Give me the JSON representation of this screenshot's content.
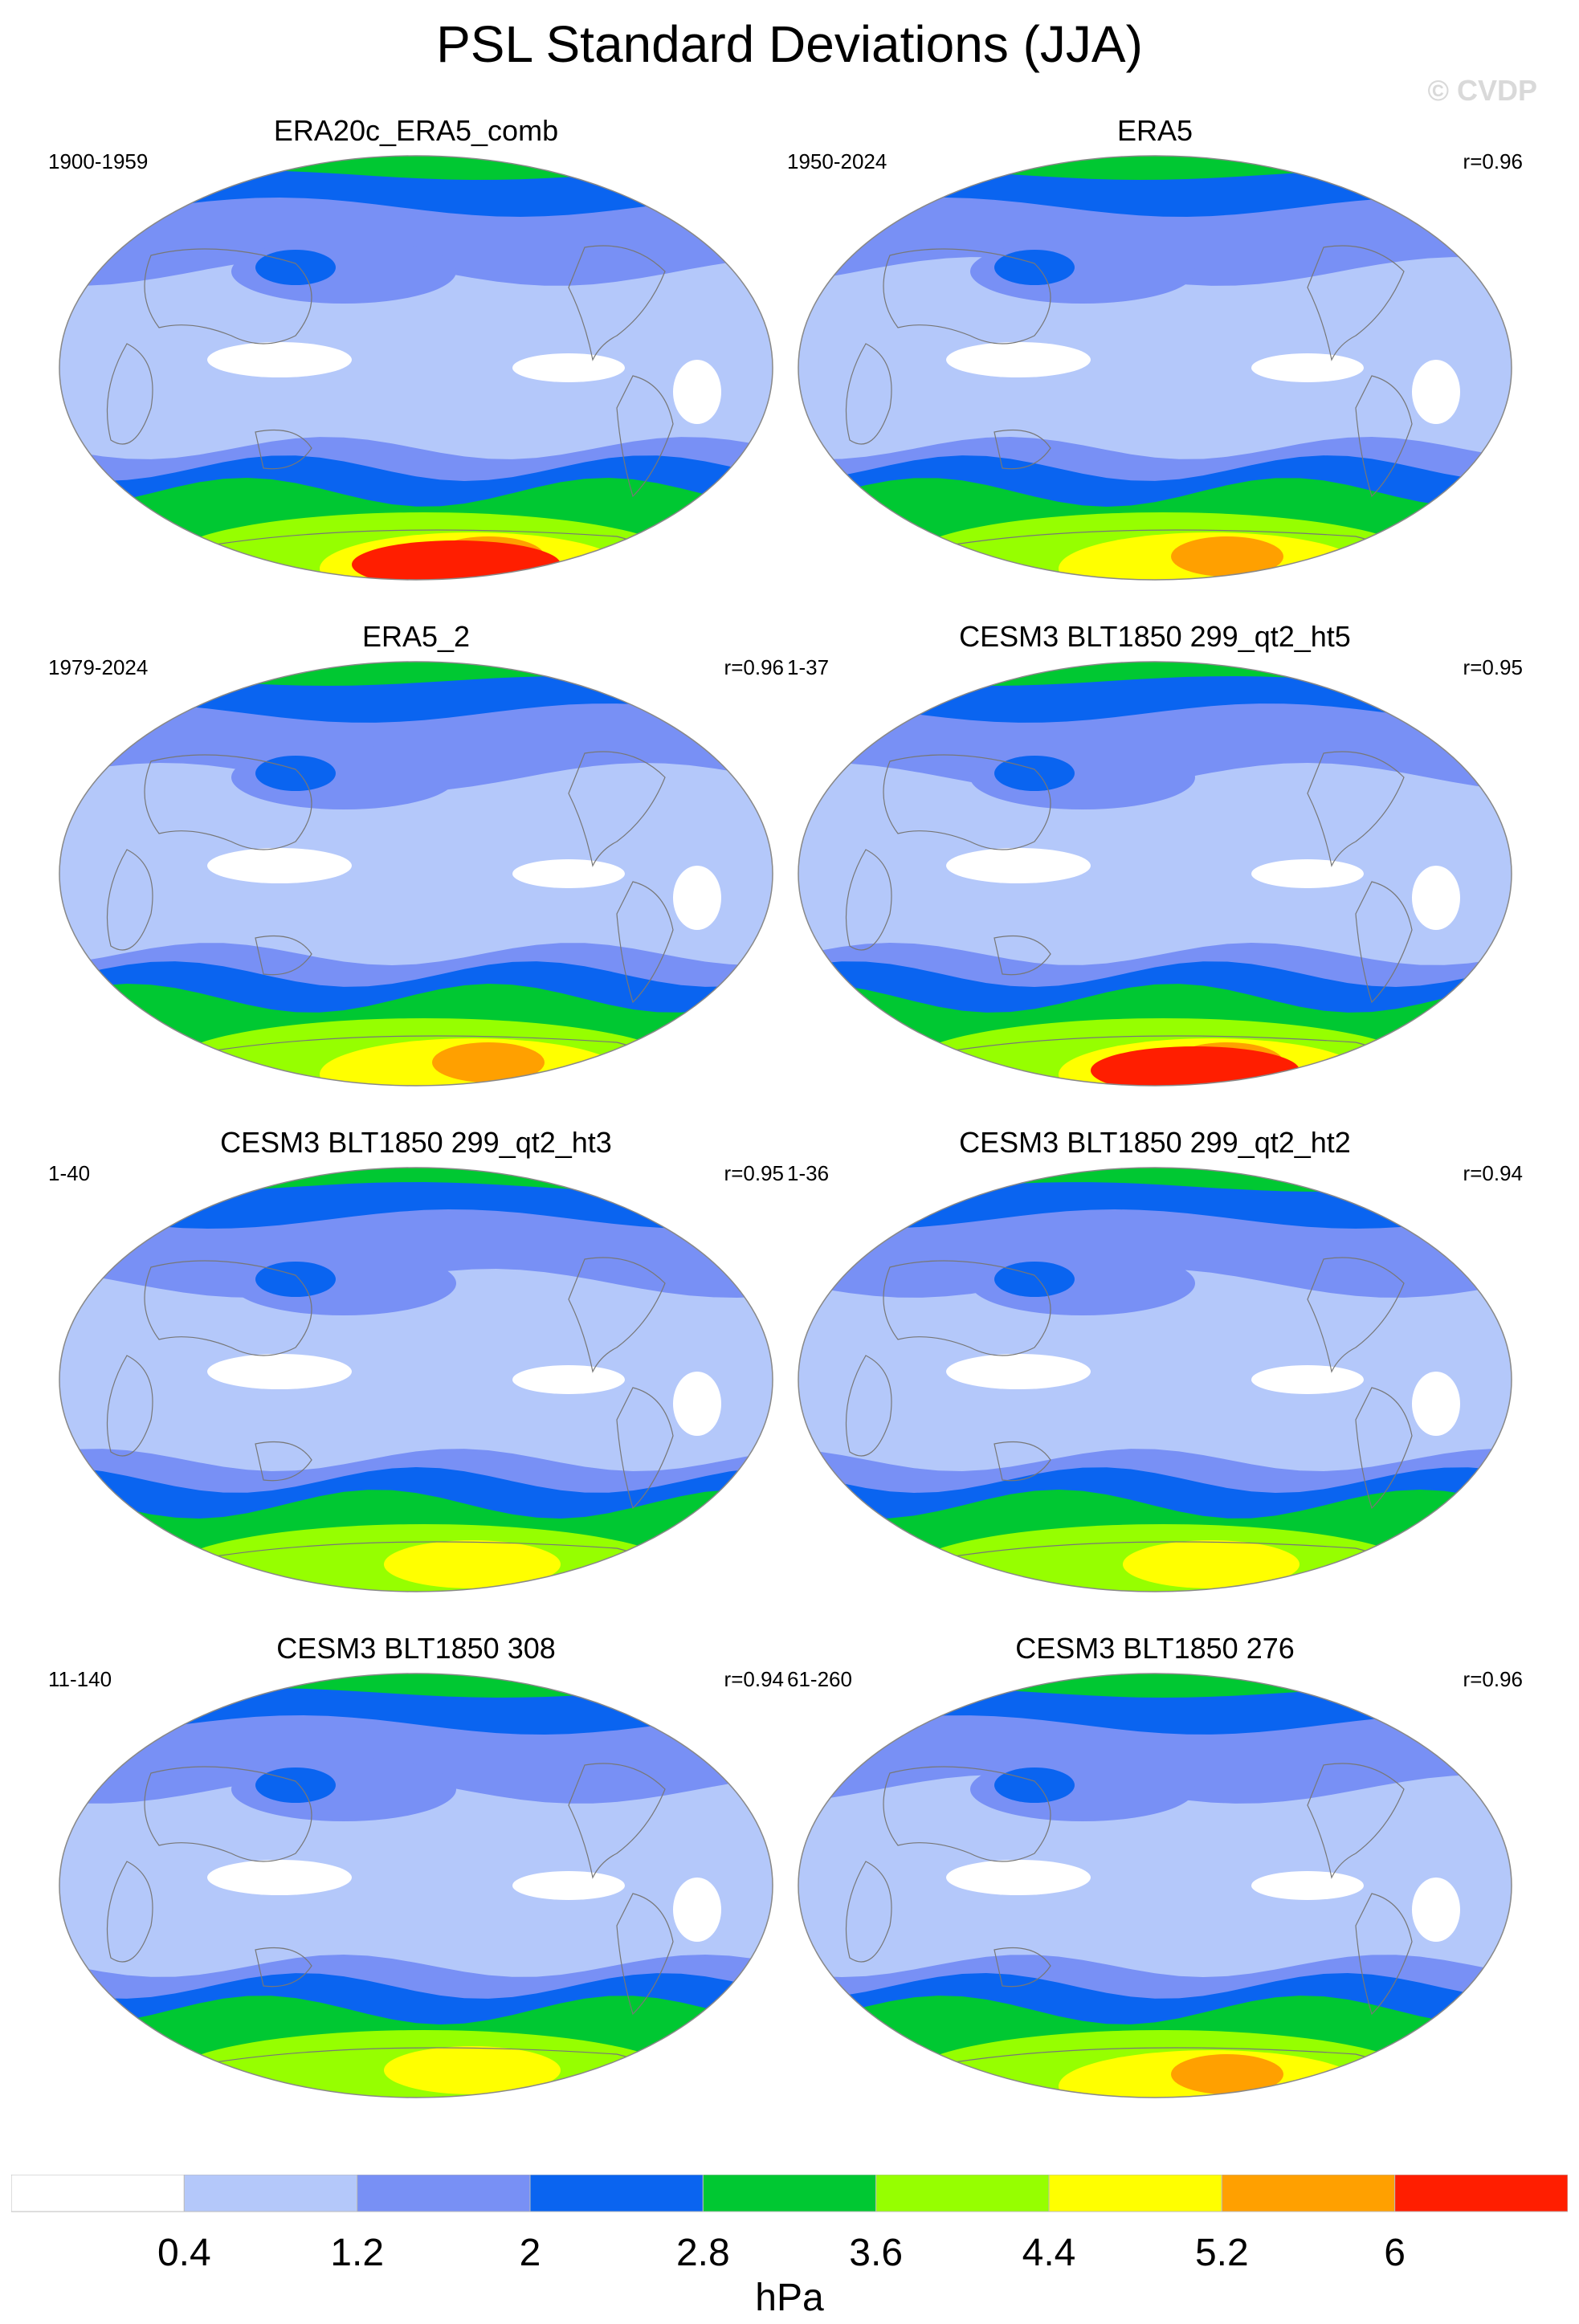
{
  "title": "PSL Standard Deviations (JJA)",
  "watermark": "© CVDP",
  "colors": {
    "levels": [
      "#ffffff",
      "#b4c8fa",
      "#7890f5",
      "#0a64f0",
      "#00c832",
      "#96ff00",
      "#ffff00",
      "#ffa000",
      "#ff1e00"
    ],
    "coast": "#777777",
    "outline": "#888888"
  },
  "panels": [
    {
      "title": "ERA20c_ERA5_comb",
      "period": "1900-1959",
      "corr": "",
      "south_max": 6
    },
    {
      "title": "ERA5",
      "period": "1950-2024",
      "corr": "r=0.96",
      "south_max": 5
    },
    {
      "title": "ERA5_2",
      "period": "1979-2024",
      "corr": "r=0.96",
      "south_max": 5
    },
    {
      "title": "CESM3 BLT1850 299_qt2_ht5",
      "period": "1-37",
      "corr": "r=0.95",
      "south_max": 6
    },
    {
      "title": "CESM3 BLT1850 299_qt2_ht3",
      "period": "1-40",
      "corr": "r=0.95",
      "south_max": 4
    },
    {
      "title": "CESM3 BLT1850 299_qt2_ht2",
      "period": "1-36",
      "corr": "r=0.94",
      "south_max": 4
    },
    {
      "title": "CESM3 BLT1850 308",
      "period": "11-140",
      "corr": "r=0.94",
      "south_max": 4
    },
    {
      "title": "CESM3 BLT1850 276",
      "period": "61-260",
      "corr": "r=0.96",
      "south_max": 5
    }
  ],
  "colorbar": {
    "labels": [
      "0.4",
      "1.2",
      "2",
      "2.8",
      "3.6",
      "4.4",
      "5.2",
      "6"
    ],
    "units": "hPa"
  }
}
